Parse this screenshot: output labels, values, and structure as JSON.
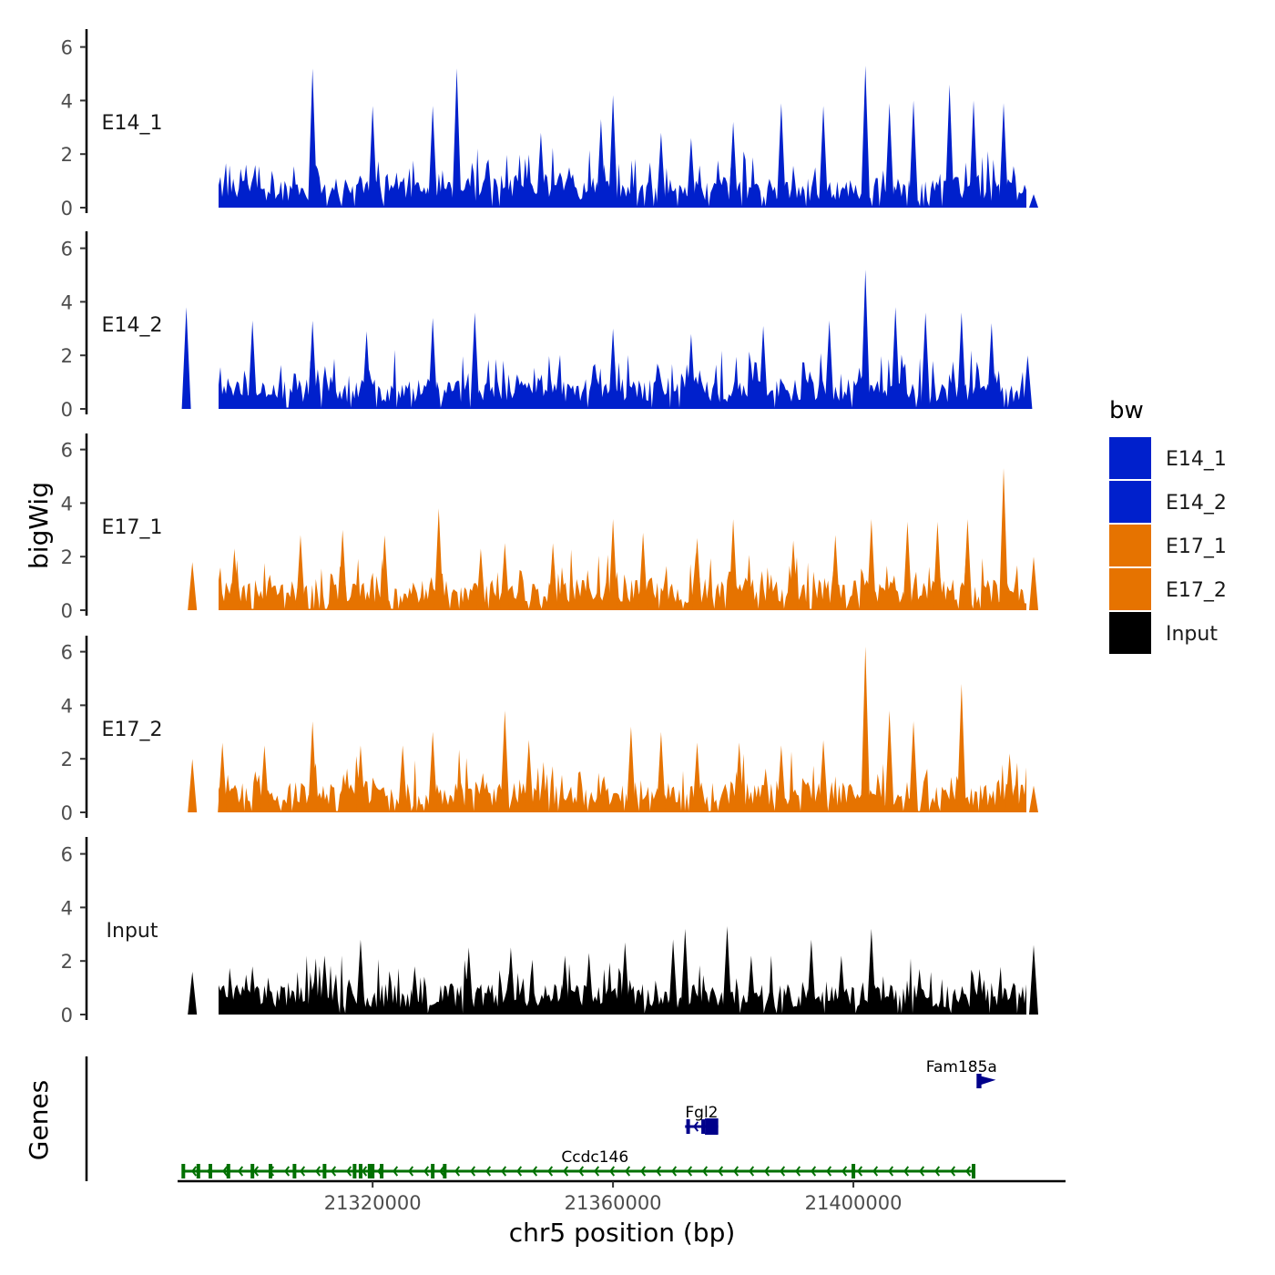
{
  "chart_data": {
    "type": "area",
    "title": "",
    "chromosome": "chr5",
    "xlabel": "chr5 position (bp)",
    "ylabel": "bigWig",
    "genes_axis_label": "Genes",
    "xlim": [
      21288000,
      21435000
    ],
    "x_ticks": [
      21320000,
      21360000,
      21400000
    ],
    "x_tick_labels": [
      "21320000",
      "21360000",
      "21400000"
    ],
    "ylim": [
      0,
      6.5
    ],
    "y_ticks": [
      0,
      2,
      4,
      6
    ],
    "y_tick_labels": [
      "0",
      "2",
      "4",
      "6"
    ],
    "legend": {
      "title": "bw",
      "position": "right",
      "entries": [
        {
          "label": "E14_1",
          "color": "#0020CC"
        },
        {
          "label": "E14_2",
          "color": "#0020CC"
        },
        {
          "label": "E17_1",
          "color": "#E67300"
        },
        {
          "label": "E17_2",
          "color": "#E67300"
        },
        {
          "label": "Input",
          "color": "#000000"
        }
      ]
    },
    "series": [
      {
        "name": "E14_1",
        "color": "#0020CC",
        "x": [
          21310000,
          21320000,
          21330000,
          21334000,
          21348000,
          21358000,
          21360000,
          21368000,
          21373000,
          21380000,
          21388000,
          21395000,
          21402000,
          21406000,
          21410000,
          21416000,
          21420000,
          21425000,
          21430000
        ],
        "values": [
          5.2,
          3.8,
          3.8,
          5.2,
          2.8,
          3.3,
          4.2,
          2.8,
          2.6,
          3.2,
          3.9,
          3.8,
          5.3,
          3.9,
          4.0,
          4.6,
          4.0,
          3.9,
          0.5
        ]
      },
      {
        "name": "E14_2",
        "color": "#0020CC",
        "x": [
          21289000,
          21300000,
          21310000,
          21319000,
          21330000,
          21337000,
          21344000,
          21360000,
          21373000,
          21385000,
          21396000,
          21402000,
          21407000,
          21412000,
          21418000,
          21423000,
          21429000
        ],
        "values": [
          3.8,
          3.3,
          3.3,
          2.9,
          3.4,
          3.6,
          1.3,
          3.0,
          2.8,
          3.1,
          3.3,
          5.2,
          3.8,
          3.6,
          3.6,
          3.2,
          2.0
        ]
      },
      {
        "name": "E17_1",
        "color": "#E67300",
        "x": [
          21290000,
          21297000,
          21308000,
          21315000,
          21322000,
          21331000,
          21338000,
          21342000,
          21350000,
          21360000,
          21365000,
          21374000,
          21380000,
          21390000,
          21397000,
          21403000,
          21409000,
          21414000,
          21419000,
          21425000,
          21430000
        ],
        "values": [
          1.8,
          2.3,
          2.8,
          3.0,
          2.8,
          3.8,
          2.3,
          2.5,
          2.5,
          3.4,
          2.9,
          2.7,
          3.4,
          2.6,
          2.8,
          3.4,
          3.3,
          3.3,
          3.4,
          5.3,
          2.0
        ]
      },
      {
        "name": "E17_2",
        "color": "#E67300",
        "x": [
          21290000,
          21295000,
          21302000,
          21310000,
          21318000,
          21325000,
          21330000,
          21342000,
          21346000,
          21363000,
          21368000,
          21374000,
          21381000,
          21388000,
          21395000,
          21402000,
          21406000,
          21410000,
          21418000,
          21426000,
          21430000
        ],
        "values": [
          2.0,
          2.6,
          2.5,
          3.4,
          2.5,
          2.5,
          3.0,
          3.8,
          2.7,
          3.2,
          3.0,
          2.6,
          2.6,
          2.5,
          2.7,
          6.2,
          3.8,
          3.4,
          4.8,
          2.2,
          1.0
        ]
      },
      {
        "name": "Input",
        "color": "#000000",
        "x": [
          21290000,
          21300000,
          21312000,
          21318000,
          21327000,
          21336000,
          21343000,
          21352000,
          21356000,
          21362000,
          21370000,
          21372000,
          21379000,
          21383000,
          21393000,
          21398000,
          21403000,
          21411000,
          21421000,
          21430000
        ],
        "values": [
          1.6,
          1.8,
          2.2,
          2.8,
          1.8,
          2.5,
          2.5,
          2.2,
          2.3,
          2.7,
          2.8,
          3.2,
          3.3,
          2.2,
          2.8,
          2.2,
          3.2,
          1.7,
          1.7,
          2.6
        ]
      }
    ],
    "genes": [
      {
        "name": "Ccdc146",
        "strand": "-",
        "start": 21288500,
        "end": 21420000,
        "color": "#007000",
        "exons": [
          21288500,
          21291000,
          21293000,
          21296000,
          21300000,
          21303000,
          21307000,
          21312000,
          21317000,
          21318000,
          21319500,
          21320000,
          21321500,
          21330000,
          21332000,
          21400000,
          21420000
        ]
      },
      {
        "name": "Fgl2",
        "strand": "-",
        "start": 21372000,
        "end": 21377500,
        "color": "#00008B",
        "exons": [
          21372500,
          21375000,
          21375800,
          21376500,
          21377200
        ]
      },
      {
        "name": "Fam185a",
        "strand": "+",
        "start": 21420800,
        "end": 21421600,
        "color": "#00008B",
        "exons": [
          21421000
        ]
      }
    ]
  }
}
